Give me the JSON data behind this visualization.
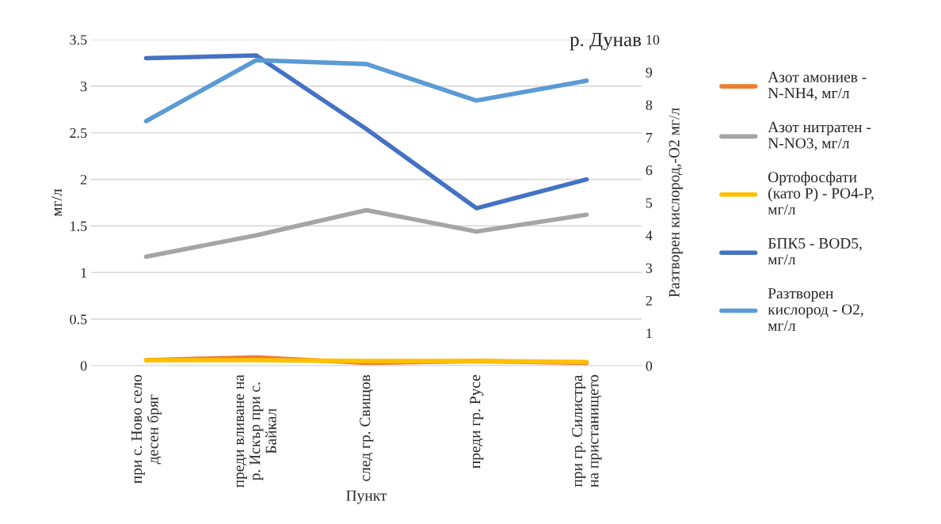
{
  "chart_data": {
    "type": "line",
    "title": "р. Дунав",
    "xlabel": "Пункт",
    "ylabel": "мг/л",
    "y2label": "Разтворен кислород,-O2 мг/л",
    "categories": [
      "при с. Ново село\nдесен бряг",
      "преди вливане на\nр. Искър при с.\nБайкал",
      "след гр. Свищов",
      "преди гр. Русе",
      "при гр. Силистра\nна пристанището"
    ],
    "series": [
      {
        "name": "Азот амониев -\nN-NH4, мг/л",
        "color": "#ed7d31",
        "values": [
          0.06,
          0.09,
          0.03,
          0.05,
          0.03
        ]
      },
      {
        "name": "Азот нитратен -\nN-NO3, мг/л",
        "color": "#a5a5a5",
        "values": [
          1.17,
          1.4,
          1.67,
          1.44,
          1.62
        ]
      },
      {
        "name": "Ортофосфати\n(като Р) - PO4-P,\nмг/л",
        "color": "#ffc000",
        "values": [
          0.06,
          0.06,
          0.05,
          0.05,
          0.04
        ]
      },
      {
        "name": "БПК5 - BOD5,\nмг/л",
        "color": "#4472c4",
        "values": [
          3.3,
          3.33,
          2.54,
          1.69,
          2.0
        ]
      },
      {
        "name": "Разтворен\nкислород - O2,\nмг/л",
        "color": "#5b9bd5",
        "axis": "y2",
        "values": [
          7.5,
          9.37,
          9.25,
          8.13,
          8.74
        ]
      }
    ],
    "ylim": [
      0,
      3.5
    ],
    "yticks": [
      0,
      0.5,
      1,
      1.5,
      2,
      2.5,
      3,
      3.5
    ],
    "y2lim": [
      0,
      10
    ],
    "y2ticks": [
      0,
      1,
      2,
      3,
      4,
      5,
      6,
      7,
      8,
      9,
      10
    ],
    "grid": "y",
    "legend": "right"
  }
}
